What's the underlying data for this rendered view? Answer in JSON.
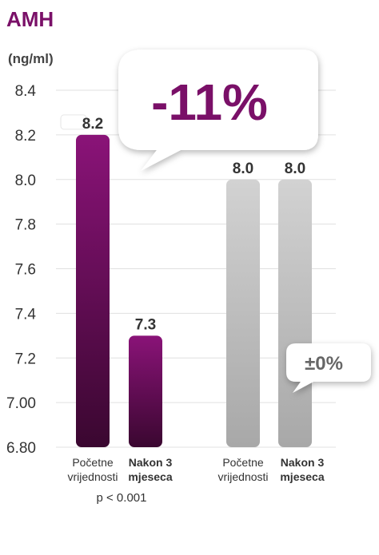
{
  "chart_data": {
    "type": "bar",
    "title": "AMH",
    "ylabel": "(ng/ml)",
    "ylim": [
      6.8,
      8.4
    ],
    "yticks": [
      "6.80",
      "7.00",
      "7.2",
      "7.4",
      "7.6",
      "7.8",
      "8.0",
      "8.2",
      "8.4"
    ],
    "ytick_values": [
      6.8,
      7.0,
      7.2,
      7.4,
      7.6,
      7.8,
      8.0,
      8.2,
      8.4
    ],
    "groups": [
      {
        "categories": [
          "Početne vrijednosti",
          "Nakon 3 mjeseca"
        ],
        "values": [
          8.2,
          7.3
        ],
        "labels": [
          "8.2",
          "7.3"
        ],
        "color": "#7a1068"
      },
      {
        "categories": [
          "Početne vrijednosti",
          "Nakon 3 mjeseca"
        ],
        "values": [
          8.0,
          8.0
        ],
        "labels": [
          "8.0",
          "8.0"
        ],
        "color": "#c4c4c4"
      }
    ],
    "category_lines": {
      "baseline": [
        "Početne",
        "vrijednosti"
      ],
      "after": [
        "Nakon 3",
        "mjeseca"
      ]
    },
    "p_value": "p < 0.001",
    "callouts": {
      "big": "-11%",
      "small": "±0%"
    },
    "grid": true
  }
}
